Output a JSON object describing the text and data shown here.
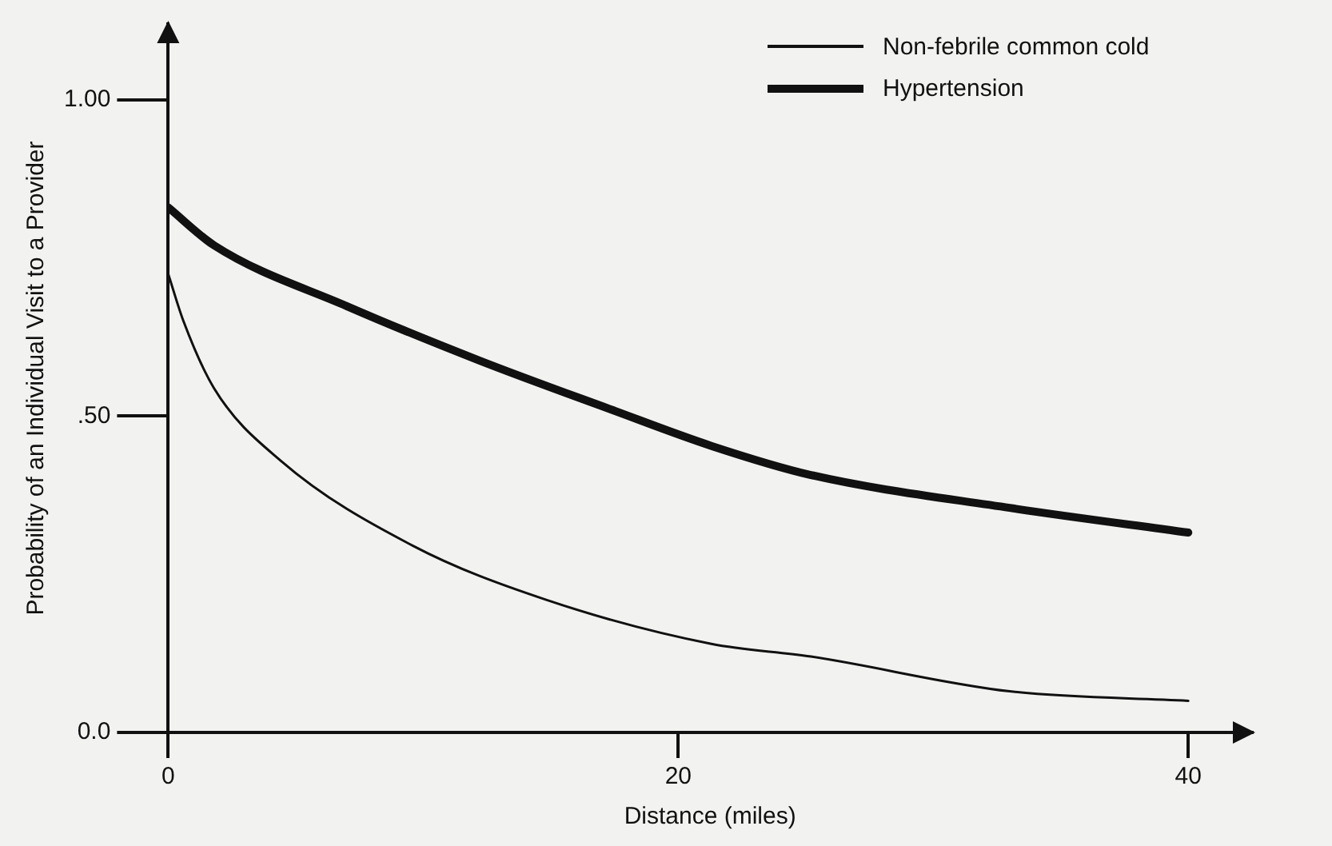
{
  "chart_data": {
    "type": "line",
    "xlabel": "Distance (miles)",
    "ylabel": "Probability of an Individual Visit to a Provider",
    "xlim": [
      0,
      42.5
    ],
    "ylim": [
      0,
      1.12
    ],
    "xticks": [
      0,
      20,
      40
    ],
    "yticks": [
      {
        "value": 0,
        "label": "0.0"
      },
      {
        "value": 0.5,
        "label": ".50"
      },
      {
        "value": 1,
        "label": "1.00"
      }
    ],
    "grid": false,
    "legend": "top right",
    "marker": "none",
    "line_style": "solid",
    "series": [
      {
        "name": "Non-febrile common cold",
        "color": "#111111",
        "x": [
          0,
          0.6,
          1.8,
          4.4,
          9.6,
          14.8,
          21.3,
          25.2,
          33,
          40
        ],
        "values": [
          0.725,
          0.65,
          0.544,
          0.43,
          0.295,
          0.21,
          0.14,
          0.12,
          0.065,
          0.05
        ]
      },
      {
        "name": "Hypertension",
        "color": "#111111",
        "x": [
          0,
          1.8,
          7,
          12.2,
          17.4,
          21.3,
          25.2,
          33,
          40
        ],
        "values": [
          0.83,
          0.77,
          0.674,
          0.588,
          0.51,
          0.453,
          0.407,
          0.355,
          0.316
        ]
      }
    ]
  }
}
